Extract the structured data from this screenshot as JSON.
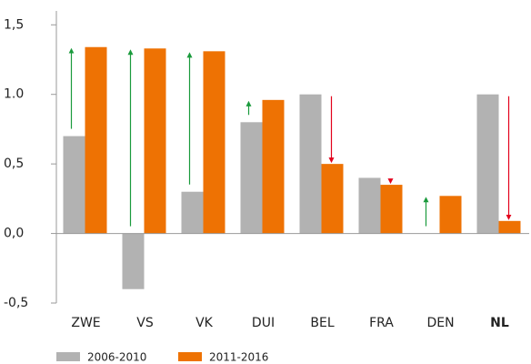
{
  "chart_data": {
    "type": "bar",
    "categories": [
      "ZWE",
      "VS",
      "VK",
      "DUI",
      "BEL",
      "FRA",
      "DEN",
      "NL"
    ],
    "series": [
      {
        "name": "2006-2010",
        "color": "#b2b2b2",
        "values": [
          0.7,
          -0.4,
          0.3,
          0.8,
          1.0,
          0.4,
          0,
          1.0
        ]
      },
      {
        "name": "2011-2016",
        "color": "#ee7203",
        "values": [
          1.34,
          1.33,
          1.31,
          0.96,
          0.5,
          0.35,
          0.27,
          0.09
        ]
      }
    ],
    "ylim": [
      -0.5,
      1.6
    ],
    "yticks": [
      {
        "value": -0.5,
        "label": "-0,5"
      },
      {
        "value": 0,
        "label": "0,0"
      },
      {
        "value": 0.5,
        "label": "0,5"
      },
      {
        "value": 1.0,
        "label": "1.0"
      },
      {
        "value": 1.5,
        "label": "1,5"
      }
    ],
    "arrows": {
      "up_color": "#1a9a3c",
      "down_color": "#e3001b"
    }
  }
}
